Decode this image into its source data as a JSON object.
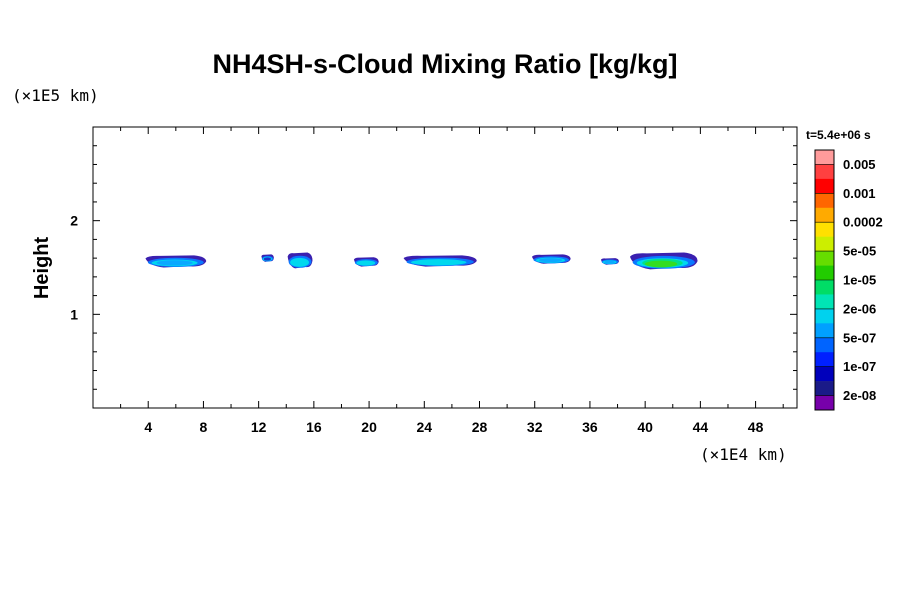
{
  "chart_data": {
    "type": "heatmap",
    "title": "NH4SH-s-Cloud Mixing Ratio [kg/kg]",
    "ylabel": "Height",
    "y_unit": "(×1E5 km)",
    "x_unit": "(×1E4 km)",
    "time_label": "t=5.4e+06 s",
    "xlim": [
      0,
      51
    ],
    "ylim": [
      0,
      3
    ],
    "x_ticks": [
      4,
      8,
      12,
      16,
      20,
      24,
      28,
      32,
      36,
      40,
      44,
      48
    ],
    "y_ticks": [
      1,
      2
    ],
    "colorbar": {
      "levels": [
        "0.005",
        "0.001",
        "0.0002",
        "5e-05",
        "1e-05",
        "2e-06",
        "5e-07",
        "1e-07",
        "2e-08"
      ],
      "colors": [
        "#ff9b9b",
        "#ff4040",
        "#ff0000",
        "#ff6600",
        "#ffaa00",
        "#ffe000",
        "#ccee00",
        "#66dd00",
        "#22cc00",
        "#00dd66",
        "#00e5b5",
        "#00d2ee",
        "#00a0ff",
        "#0064ff",
        "#0020ff",
        "#0000bb",
        "#1a1a88",
        "#7700aa"
      ]
    },
    "cloud_patches": [
      {
        "x": [
          3.8,
          8.2
        ],
        "y": [
          1.5,
          1.63
        ],
        "peak": "1e-07"
      },
      {
        "x": [
          12.2,
          13.1
        ],
        "y": [
          1.56,
          1.64
        ],
        "peak": "2e-08"
      },
      {
        "x": [
          14.1,
          15.9
        ],
        "y": [
          1.49,
          1.66
        ],
        "peak": "5e-07"
      },
      {
        "x": [
          18.9,
          20.7
        ],
        "y": [
          1.51,
          1.61
        ],
        "peak": "5e-07"
      },
      {
        "x": [
          22.5,
          27.8
        ],
        "y": [
          1.51,
          1.63
        ],
        "peak": "5e-07"
      },
      {
        "x": [
          31.8,
          34.6
        ],
        "y": [
          1.54,
          1.64
        ],
        "peak": "1e-07"
      },
      {
        "x": [
          36.8,
          38.1
        ],
        "y": [
          1.53,
          1.6
        ],
        "peak": "1e-07"
      },
      {
        "x": [
          38.9,
          43.8
        ],
        "y": [
          1.48,
          1.66
        ],
        "peak": "1e-05"
      }
    ]
  }
}
